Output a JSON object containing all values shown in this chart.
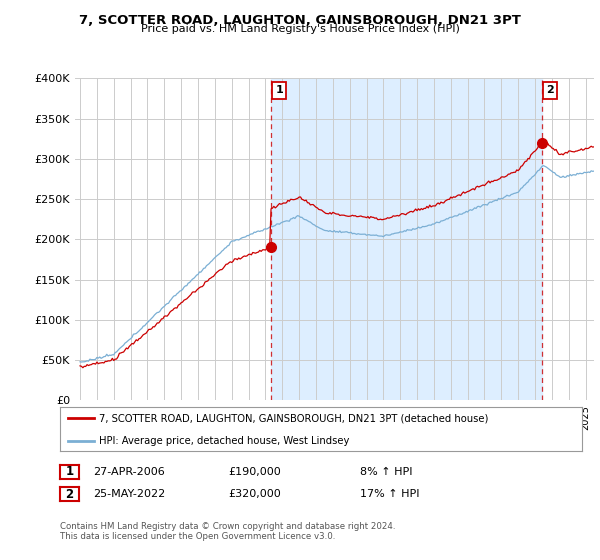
{
  "title": "7, SCOTTER ROAD, LAUGHTON, GAINSBOROUGH, DN21 3PT",
  "subtitle": "Price paid vs. HM Land Registry's House Price Index (HPI)",
  "ylabel_ticks": [
    "£0",
    "£50K",
    "£100K",
    "£150K",
    "£200K",
    "£250K",
    "£300K",
    "£350K",
    "£400K"
  ],
  "ylim": [
    0,
    400000
  ],
  "xlim_start": 1994.7,
  "xlim_end": 2025.5,
  "sale1_x": 2006.32,
  "sale1_y": 190000,
  "sale1_label": "1",
  "sale1_date": "27-APR-2006",
  "sale1_price": "£190,000",
  "sale1_hpi": "8% ↑ HPI",
  "sale2_x": 2022.4,
  "sale2_y": 320000,
  "sale2_label": "2",
  "sale2_date": "25-MAY-2022",
  "sale2_price": "£320,000",
  "sale2_hpi": "17% ↑ HPI",
  "line_property_color": "#cc0000",
  "line_hpi_color": "#7bafd4",
  "shade_color": "#ddeeff",
  "legend_property": "7, SCOTTER ROAD, LAUGHTON, GAINSBOROUGH, DN21 3PT (detached house)",
  "legend_hpi": "HPI: Average price, detached house, West Lindsey",
  "footer1": "Contains HM Land Registry data © Crown copyright and database right 2024.",
  "footer2": "This data is licensed under the Open Government Licence v3.0.",
  "background_color": "#ffffff",
  "plot_background": "#ffffff",
  "grid_color": "#cccccc",
  "dashed_color": "#cc0000",
  "marker_box_color": "#cc0000"
}
